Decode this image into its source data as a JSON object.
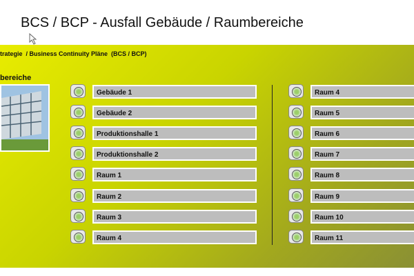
{
  "header": {
    "title": "BCS / BCP - Ausfall Gebäude / Raumbereiche"
  },
  "breadcrumb": "trategie  / Business Continuity Pläne  (BCS / BCP)",
  "section": "bereiche",
  "left_items": [
    "Gebäude 1",
    "Gebäude 2",
    "Produktionshalle 1",
    "Produktionshalle 2",
    "Raum 1",
    "Raum 2",
    "Raum 3",
    "Raum 4"
  ],
  "right_items": [
    "Raum 4",
    "Raum 5",
    "Raum 6",
    "Raum 7",
    "Raum 8",
    "Raum 9",
    "Raum 10",
    "Raum 11"
  ]
}
